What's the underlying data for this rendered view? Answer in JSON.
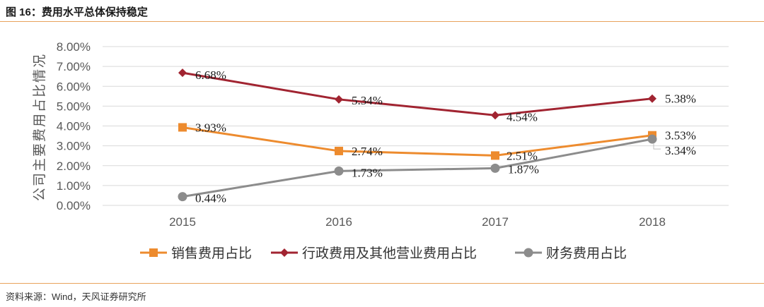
{
  "figure": {
    "title": "图 16：费用水平总体保持稳定",
    "source": "资料来源：Wind，天风证券研究所"
  },
  "chart_data": {
    "type": "line",
    "title": "费用水平总体保持稳定",
    "xlabel": "",
    "ylabel": "公司主要费用占比情况",
    "categories": [
      "2015",
      "2016",
      "2017",
      "2018"
    ],
    "ylim": [
      0,
      8
    ],
    "ytick_step": 1,
    "ytick_labels": [
      "0.00%",
      "1.00%",
      "2.00%",
      "3.00%",
      "4.00%",
      "5.00%",
      "6.00%",
      "7.00%",
      "8.00%"
    ],
    "grid": true,
    "legend_position": "bottom",
    "series": [
      {
        "name": "销售费用占比",
        "color": "#ed8b2e",
        "marker": "square",
        "values": [
          3.93,
          2.74,
          2.51,
          3.53
        ],
        "labels": [
          "3.93%",
          "2.74%",
          "2.51%",
          "3.53%"
        ]
      },
      {
        "name": "行政费用及其他营业费用占比",
        "color": "#a12431",
        "marker": "diamond",
        "values": [
          6.68,
          5.34,
          4.54,
          5.38
        ],
        "labels": [
          "6.68%",
          "5.34%",
          "4.54%",
          "5.38%"
        ]
      },
      {
        "name": "财务费用占比",
        "color": "#8c8c8c",
        "marker": "circle",
        "values": [
          0.44,
          1.73,
          1.87,
          3.34
        ],
        "labels": [
          "0.44%",
          "1.73%",
          "1.87%",
          "3.34%"
        ]
      }
    ]
  }
}
